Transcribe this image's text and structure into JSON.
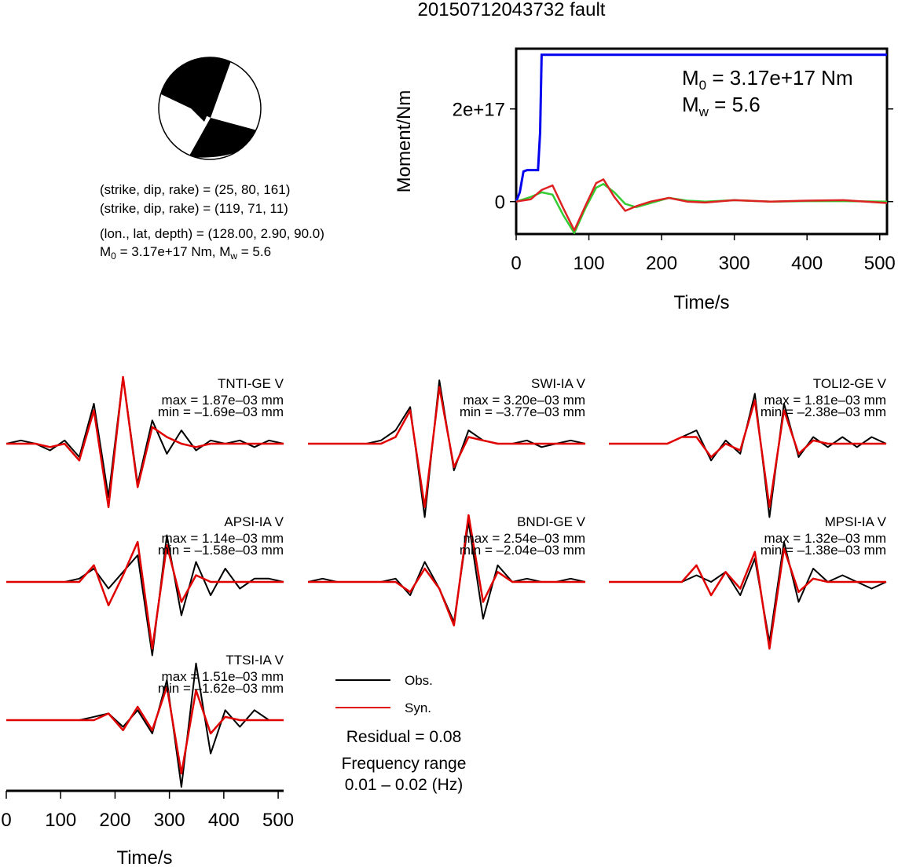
{
  "title": "20150712043732 fault",
  "mechanism": {
    "nodal_plane_1": "(strike, dip, rake) = (25, 80, 161)",
    "nodal_plane_2": "(strike, dip, rake) = (119, 71, 11)",
    "location": "(lon., lat, depth) = (128.00, 2.90, 90.0)",
    "moment_line": {
      "m": "M",
      "sub0": "0",
      "mid": " = 3.17e+17 Nm, M",
      "subw": "w",
      "end": " = 5.6"
    }
  },
  "colors": {
    "obs": "#000000",
    "syn": "#e00000",
    "moment": "#0000ee",
    "stf_green": "#33cc33",
    "stf_red": "#dd2222"
  },
  "chart_data": [
    {
      "type": "line",
      "name": "moment-rate",
      "xlabel": "Time/s",
      "ylabel": "Moment/Nm",
      "xlim": [
        0,
        510
      ],
      "ylim": [
        -70000000000000000,
        330000000000000000
      ],
      "xticks": [
        "0",
        "100",
        "200",
        "300",
        "400",
        "500"
      ],
      "yticks": [
        "0",
        "2e+17"
      ],
      "annotation": {
        "m0_label": "M",
        "m0_sub": "0",
        "m0_value": " = 3.17e+17 Nm",
        "mw_label": "M",
        "mw_sub": "w",
        "mw_value": " = 5.6"
      },
      "series": [
        {
          "color": "#0000ee",
          "x": [
            0,
            5,
            10,
            15,
            20,
            25,
            30,
            33,
            35,
            40,
            510
          ],
          "y": [
            0,
            20000000000000000,
            65000000000000000,
            68000000000000000,
            68000000000000000,
            68000000000000000,
            68000000000000000,
            150000000000000000,
            317000000000000000,
            317000000000000000,
            317000000000000000
          ]
        },
        {
          "color": "#33cc33",
          "x": [
            0,
            20,
            35,
            50,
            65,
            80,
            95,
            110,
            120,
            135,
            150,
            165,
            185,
            210,
            235,
            260,
            300,
            350,
            400,
            450,
            510
          ],
          "y": [
            0,
            10000000000000000,
            20000000000000000,
            15000000000000000,
            -30000000000000000,
            -68000000000000000,
            -15000000000000000,
            30000000000000000,
            38000000000000000,
            20000000000000000,
            -5000000000000000,
            -12000000000000000,
            -3000000000000000,
            8000000000000000,
            2000000000000000,
            0,
            3000000000000000,
            0,
            1000000000000000,
            1000000000000000,
            0
          ]
        },
        {
          "color": "#dd2222",
          "x": [
            0,
            20,
            35,
            50,
            65,
            80,
            95,
            110,
            120,
            135,
            150,
            165,
            185,
            210,
            235,
            260,
            300,
            350,
            400,
            450,
            510
          ],
          "y": [
            0,
            5000000000000000,
            25000000000000000,
            35000000000000000,
            -15000000000000000,
            -62000000000000000,
            -10000000000000000,
            40000000000000000,
            48000000000000000,
            10000000000000000,
            -20000000000000000,
            -10000000000000000,
            0,
            8000000000000000,
            0,
            -2000000000000000,
            3000000000000000,
            0,
            2000000000000000,
            3000000000000000,
            -3000000000000000
          ]
        }
      ]
    },
    {
      "type": "line",
      "name": "waveforms",
      "xlabel": "Time/s",
      "xlim": [
        0,
        510
      ],
      "xticks": [
        "0",
        "100",
        "200",
        "300",
        "400",
        "500"
      ],
      "legend": {
        "position": "bottom-center",
        "obs": "Obs.",
        "syn": "Syn."
      },
      "residual": "Residual = 0.08",
      "freq_title": "Frequency range",
      "freq_range": "0.01 – 0.02 (Hz)",
      "stations": [
        {
          "name": "TNTI-GE V",
          "max": "max = 1.87e–03 mm",
          "min": "min = –1.69e–03 mm",
          "obs_y": [
            0,
            0.05,
            0,
            -0.1,
            0.05,
            -0.2,
            0.6,
            -0.8,
            1.0,
            -0.6,
            0.35,
            -0.15,
            0.2,
            -0.1,
            0.05,
            0,
            0.05,
            -0.05,
            0.05,
            0
          ],
          "syn_y": [
            0,
            0,
            0,
            -0.05,
            0,
            -0.25,
            0.5,
            -0.95,
            1.0,
            -0.65,
            0.25,
            0.1,
            0,
            -0.05,
            0,
            0,
            0,
            0,
            0,
            0
          ]
        },
        {
          "name": "SWI-IA V",
          "max": "max = 3.20e–03 mm",
          "min": "min = –3.77e–03 mm",
          "obs_y": [
            0,
            0,
            0,
            0,
            0,
            0.05,
            0.2,
            0.55,
            -1.1,
            0.95,
            -0.4,
            0.2,
            0.05,
            0,
            0,
            0.05,
            -0.05,
            0,
            0.05,
            0
          ],
          "syn_y": [
            0,
            0,
            0,
            0,
            0,
            0,
            0.1,
            0.5,
            -0.95,
            0.85,
            -0.35,
            0.1,
            0.05,
            0,
            0,
            0,
            0,
            0,
            0,
            0
          ]
        },
        {
          "name": "TOLI2-GE V",
          "max": "max = 1.81e–03 mm",
          "min": "min = –2.38e–03 mm",
          "obs_y": [
            0,
            0,
            0,
            0,
            0,
            0.1,
            0.2,
            -0.25,
            0.05,
            -0.15,
            0.75,
            -1.1,
            0.6,
            -0.2,
            0.1,
            -0.05,
            0.1,
            -0.05,
            0.1,
            0
          ],
          "syn_y": [
            0,
            0,
            0,
            0,
            0,
            0.1,
            0.1,
            -0.2,
            0,
            -0.1,
            0.65,
            -0.95,
            0.5,
            -0.15,
            0.05,
            0,
            0,
            0,
            0,
            0
          ]
        },
        {
          "name": "APSI-IA V",
          "max": "max = 1.14e–03 mm",
          "min": "min = –1.58e–03 mm",
          "obs_y": [
            0,
            0,
            0,
            0,
            0,
            0.05,
            0.2,
            -0.1,
            0.15,
            0.4,
            -1.1,
            0.7,
            -0.5,
            0.3,
            -0.2,
            0.2,
            -0.1,
            0.05,
            0.05,
            0
          ],
          "syn_y": [
            0,
            0,
            0,
            0,
            0,
            0,
            0.25,
            -0.35,
            0.1,
            0.6,
            -1.0,
            0.55,
            -0.3,
            0.1,
            0,
            0,
            0,
            0,
            0,
            0
          ]
        },
        {
          "name": "BNDI-GE V",
          "max": "max = 2.54e–03 mm",
          "min": "min = –2.04e–03 mm",
          "obs_y": [
            0,
            0.05,
            0,
            0,
            0,
            0,
            0.05,
            -0.2,
            0.3,
            -0.1,
            -0.6,
            0.9,
            -0.55,
            0.25,
            0,
            0.05,
            0,
            0,
            0.05,
            0
          ],
          "syn_y": [
            0,
            0,
            0,
            0,
            0,
            0,
            0,
            -0.15,
            0.2,
            -0.1,
            -0.65,
            1.0,
            -0.3,
            0.15,
            0,
            0,
            0,
            0,
            0,
            0
          ]
        },
        {
          "name": "MPSI-IA V",
          "max": "max = 1.32e–03 mm",
          "min": "min = –1.38e–03 mm",
          "obs_y": [
            0,
            0,
            0,
            0,
            0,
            0,
            0.1,
            0,
            0.15,
            -0.2,
            0.35,
            -0.9,
            0.6,
            -0.3,
            0.2,
            0,
            0.1,
            0,
            -0.1,
            0
          ],
          "syn_y": [
            0,
            0,
            0,
            0,
            0,
            0,
            0.25,
            -0.2,
            0.15,
            -0.1,
            0.45,
            -1.0,
            0.5,
            -0.15,
            0.05,
            0,
            0,
            0,
            0,
            0
          ]
        },
        {
          "name": "TTSI-IA V",
          "max": "max = 1.51e–03 mm",
          "min": "min = –1.62e–03 mm",
          "obs_y": [
            0,
            0,
            0,
            0,
            0,
            0,
            0.05,
            0.1,
            -0.1,
            0.15,
            -0.2,
            0.6,
            -1.0,
            0.85,
            -0.5,
            0.15,
            -0.1,
            0.15,
            0,
            0
          ],
          "syn_y": [
            0,
            0,
            0,
            0,
            0,
            0,
            0,
            0.1,
            -0.15,
            0.2,
            -0.15,
            0.5,
            -0.8,
            0.45,
            -0.2,
            0.05,
            0,
            0,
            0,
            0
          ]
        }
      ]
    }
  ]
}
